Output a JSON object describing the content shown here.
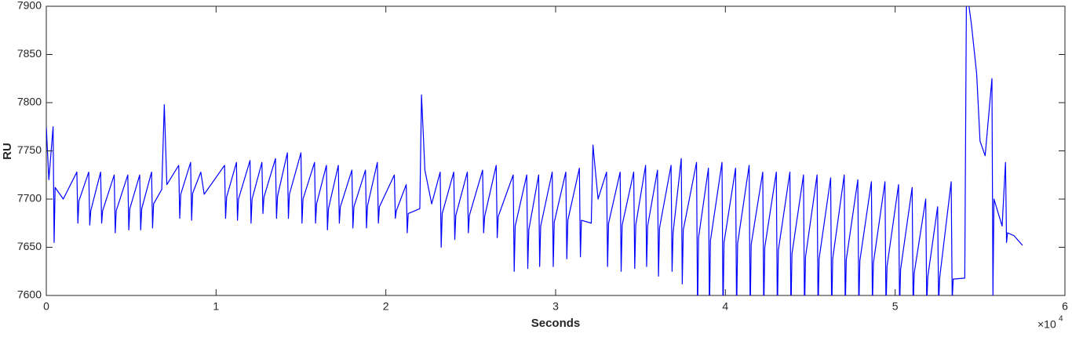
{
  "chart_data": {
    "type": "line",
    "x_label": "Seconds",
    "y_label": "RU",
    "x_multiplier": "×10",
    "x_exponent": "4",
    "xlim": [
      0,
      60000
    ],
    "ylim": [
      7600,
      7900
    ],
    "xticks": [
      0,
      {
        "value": 10000,
        "label": "1"
      },
      {
        "value": 20000,
        "label": "2"
      },
      {
        "value": 30000,
        "label": "3"
      },
      {
        "value": 40000,
        "label": "4"
      },
      {
        "value": 50000,
        "label": "5"
      },
      {
        "value": 60000,
        "label": "6"
      }
    ],
    "yticks": [
      7600,
      7650,
      7700,
      7750,
      7800,
      7850,
      7900
    ],
    "grid": false,
    "series": [
      {
        "color": "#0000ff",
        "x": [
          0,
          150,
          400,
          460,
          520,
          1000,
          1800,
          1860,
          1920,
          2500,
          2560,
          2620,
          3200,
          3260,
          3320,
          4000,
          4060,
          4120,
          4800,
          4860,
          4920,
          5500,
          5560,
          5620,
          6200,
          6260,
          6320,
          6800,
          6950,
          7100,
          7800,
          7860,
          7920,
          8500,
          8560,
          8620,
          9100,
          9300,
          10500,
          10560,
          10620,
          11200,
          11260,
          11320,
          12000,
          12060,
          12120,
          12700,
          12760,
          12820,
          13500,
          13560,
          13620,
          14200,
          14260,
          14320,
          15000,
          15060,
          15120,
          15800,
          15860,
          15920,
          16500,
          16560,
          16620,
          17200,
          17260,
          17320,
          18000,
          18060,
          18120,
          18800,
          18860,
          18920,
          19500,
          19560,
          19620,
          20500,
          20560,
          20620,
          21200,
          21260,
          21320,
          22000,
          22100,
          22300,
          22700,
          23200,
          23260,
          23320,
          24000,
          24060,
          24120,
          24800,
          24860,
          24920,
          25700,
          25760,
          25820,
          26500,
          26560,
          26620,
          27500,
          27560,
          27620,
          28300,
          28360,
          28420,
          29000,
          29060,
          29120,
          29800,
          29860,
          29920,
          30600,
          30660,
          30720,
          31400,
          31460,
          31520,
          32100,
          32200,
          32500,
          33000,
          33060,
          33120,
          33800,
          33860,
          33920,
          34600,
          34660,
          34720,
          35300,
          35360,
          35420,
          36000,
          36060,
          36120,
          36800,
          36860,
          36920,
          37400,
          37460,
          37520,
          38300,
          38360,
          38420,
          39000,
          39060,
          39120,
          39800,
          39860,
          39920,
          40600,
          40660,
          40720,
          41400,
          41460,
          41520,
          42200,
          42260,
          42320,
          43000,
          43060,
          43120,
          43800,
          43860,
          43920,
          44600,
          44660,
          44720,
          45400,
          45460,
          45520,
          46200,
          46260,
          46320,
          47000,
          47060,
          47120,
          47800,
          47860,
          47920,
          48600,
          48660,
          48720,
          49400,
          49460,
          49520,
          50200,
          50260,
          50320,
          51000,
          51060,
          51120,
          51800,
          51860,
          51920,
          52500,
          52560,
          52620,
          53300,
          53360,
          53420,
          54100,
          54200,
          54500,
          54800,
          55000,
          55300,
          55700,
          55760,
          55820,
          56300,
          56500,
          56560,
          56620,
          57000,
          57500
        ],
        "values": [
          7775,
          7720,
          7775,
          7655,
          7712,
          7700,
          7728,
          7675,
          7698,
          7728,
          7673,
          7688,
          7728,
          7675,
          7688,
          7725,
          7665,
          7688,
          7725,
          7668,
          7690,
          7725,
          7668,
          7690,
          7728,
          7670,
          7695,
          7710,
          7798,
          7715,
          7735,
          7680,
          7705,
          7738,
          7678,
          7706,
          7728,
          7705,
          7735,
          7680,
          7702,
          7738,
          7678,
          7700,
          7740,
          7675,
          7700,
          7738,
          7685,
          7702,
          7742,
          7680,
          7703,
          7748,
          7680,
          7705,
          7748,
          7675,
          7700,
          7738,
          7675,
          7695,
          7735,
          7668,
          7690,
          7735,
          7675,
          7692,
          7730,
          7670,
          7692,
          7730,
          7670,
          7693,
          7738,
          7675,
          7692,
          7725,
          7680,
          7688,
          7715,
          7665,
          7685,
          7690,
          7808,
          7730,
          7695,
          7728,
          7650,
          7685,
          7728,
          7658,
          7683,
          7728,
          7665,
          7683,
          7730,
          7665,
          7682,
          7735,
          7660,
          7682,
          7725,
          7625,
          7672,
          7725,
          7628,
          7668,
          7725,
          7630,
          7672,
          7728,
          7630,
          7676,
          7728,
          7638,
          7678,
          7732,
          7640,
          7678,
          7675,
          7756,
          7700,
          7728,
          7630,
          7675,
          7728,
          7625,
          7673,
          7728,
          7628,
          7673,
          7735,
          7630,
          7672,
          7730,
          7620,
          7670,
          7735,
          7625,
          7665,
          7742,
          7612,
          7668,
          7738,
          7580,
          7660,
          7732,
          7580,
          7657,
          7738,
          7580,
          7655,
          7732,
          7580,
          7654,
          7735,
          7580,
          7653,
          7728,
          7580,
          7650,
          7728,
          7580,
          7647,
          7728,
          7580,
          7643,
          7725,
          7580,
          7640,
          7725,
          7580,
          7638,
          7722,
          7580,
          7638,
          7725,
          7585,
          7637,
          7720,
          7585,
          7636,
          7718,
          7590,
          7634,
          7718,
          7585,
          7630,
          7715,
          7585,
          7627,
          7712,
          7585,
          7623,
          7700,
          7590,
          7619,
          7692,
          7590,
          7618,
          7718,
          7595,
          7617,
          7618,
          7920,
          7880,
          7830,
          7760,
          7745,
          7825,
          7600,
          7700,
          7672,
          7738,
          7655,
          7665,
          7662,
          7652
        ]
      }
    ]
  }
}
